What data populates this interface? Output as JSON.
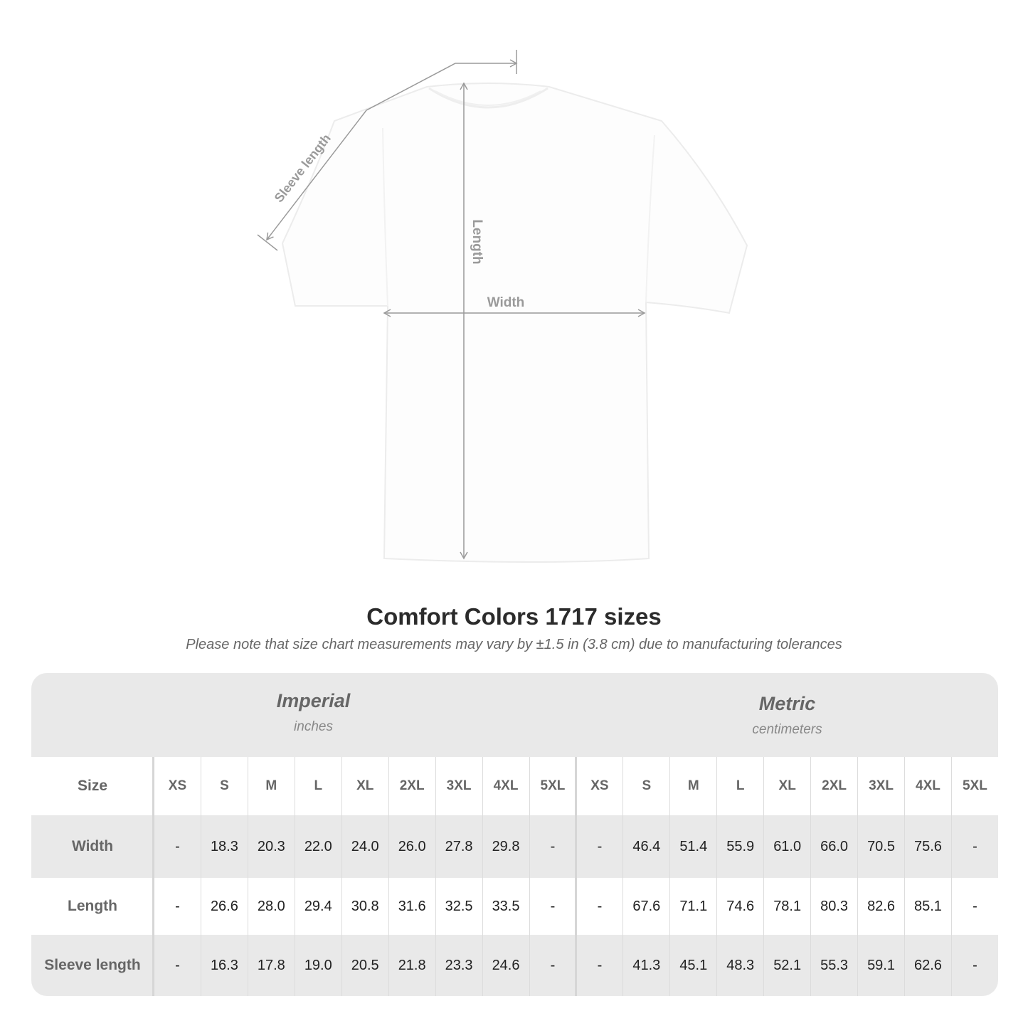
{
  "diagram": {
    "labels": {
      "sleeve": "Sleeve length",
      "length": "Length",
      "width": "Width"
    }
  },
  "title": "Comfort Colors 1717 sizes",
  "subtitle": "Please note that size chart measurements may vary by ±1.5 in (3.8 cm) due to manufacturing tolerances",
  "table": {
    "imperial": {
      "label": "Imperial",
      "unit": "inches"
    },
    "metric": {
      "label": "Metric",
      "unit": "centimeters"
    },
    "size_label": "Size",
    "sizes": [
      "XS",
      "S",
      "M",
      "L",
      "XL",
      "2XL",
      "3XL",
      "4XL",
      "5XL"
    ],
    "rows": [
      {
        "label": "Width",
        "imperial": [
          "-",
          "18.3",
          "20.3",
          "22.0",
          "24.0",
          "26.0",
          "27.8",
          "29.8",
          "-"
        ],
        "metric": [
          "-",
          "46.4",
          "51.4",
          "55.9",
          "61.0",
          "66.0",
          "70.5",
          "75.6",
          "-"
        ]
      },
      {
        "label": "Length",
        "imperial": [
          "-",
          "26.6",
          "28.0",
          "29.4",
          "30.8",
          "31.6",
          "32.5",
          "33.5",
          "-"
        ],
        "metric": [
          "-",
          "67.6",
          "71.1",
          "74.6",
          "78.1",
          "80.3",
          "82.6",
          "85.1",
          "-"
        ]
      },
      {
        "label": "Sleeve length",
        "imperial": [
          "-",
          "16.3",
          "17.8",
          "19.0",
          "20.5",
          "21.8",
          "23.3",
          "24.6",
          "-"
        ],
        "metric": [
          "-",
          "41.3",
          "45.1",
          "48.3",
          "52.1",
          "55.3",
          "59.1",
          "62.6",
          "-"
        ]
      }
    ]
  },
  "colors": {
    "header_bg": "#e9e9e9",
    "label_text": "#666666",
    "measure_line": "#999999"
  }
}
